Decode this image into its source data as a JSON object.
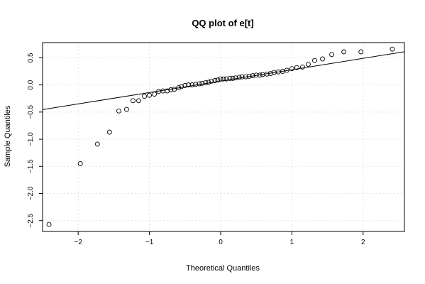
{
  "chart_data": {
    "type": "scatter",
    "title": "QQ plot of e[t]",
    "xlabel": "Theoretical Quantiles",
    "ylabel": "Sample Quantiles",
    "xlim": [
      -2.5,
      2.58
    ],
    "ylim": [
      -2.7,
      0.78
    ],
    "xticks": [
      -2,
      -1,
      0,
      1,
      2
    ],
    "yticks": [
      -2.5,
      -2.0,
      -1.5,
      -1.0,
      -0.5,
      0.0,
      0.5
    ],
    "xtick_labels": [
      "−2",
      "−1",
      "0",
      "1",
      "2"
    ],
    "ytick_labels": [
      "−2.5",
      "−2.0",
      "−1.5",
      "−1.0",
      "−0.5",
      "0.0",
      "0.5"
    ],
    "grid": true,
    "points": [
      [
        -2.41,
        -2.57
      ],
      [
        -1.97,
        -1.45
      ],
      [
        -1.73,
        -1.09
      ],
      [
        -1.56,
        -0.87
      ],
      [
        -1.43,
        -0.48
      ],
      [
        -1.32,
        -0.45
      ],
      [
        -1.23,
        -0.29
      ],
      [
        -1.15,
        -0.29
      ],
      [
        -1.07,
        -0.21
      ],
      [
        -1.0,
        -0.19
      ],
      [
        -0.93,
        -0.17
      ],
      [
        -0.87,
        -0.12
      ],
      [
        -0.81,
        -0.11
      ],
      [
        -0.75,
        -0.11
      ],
      [
        -0.7,
        -0.09
      ],
      [
        -0.65,
        -0.08
      ],
      [
        -0.59,
        -0.05
      ],
      [
        -0.55,
        -0.03
      ],
      [
        -0.5,
        -0.01
      ],
      [
        -0.45,
        0.0
      ],
      [
        -0.4,
        0.0
      ],
      [
        -0.35,
        0.01
      ],
      [
        -0.3,
        0.02
      ],
      [
        -0.26,
        0.03
      ],
      [
        -0.21,
        0.04
      ],
      [
        -0.17,
        0.05
      ],
      [
        -0.13,
        0.07
      ],
      [
        -0.08,
        0.08
      ],
      [
        -0.04,
        0.09
      ],
      [
        0.0,
        0.11
      ],
      [
        0.04,
        0.11
      ],
      [
        0.08,
        0.11
      ],
      [
        0.13,
        0.12
      ],
      [
        0.17,
        0.12
      ],
      [
        0.21,
        0.13
      ],
      [
        0.26,
        0.14
      ],
      [
        0.3,
        0.15
      ],
      [
        0.35,
        0.15
      ],
      [
        0.4,
        0.16
      ],
      [
        0.45,
        0.17
      ],
      [
        0.5,
        0.18
      ],
      [
        0.55,
        0.18
      ],
      [
        0.59,
        0.19
      ],
      [
        0.65,
        0.2
      ],
      [
        0.7,
        0.21
      ],
      [
        0.75,
        0.23
      ],
      [
        0.81,
        0.24
      ],
      [
        0.87,
        0.25
      ],
      [
        0.93,
        0.27
      ],
      [
        1.0,
        0.3
      ],
      [
        1.07,
        0.32
      ],
      [
        1.15,
        0.33
      ],
      [
        1.23,
        0.38
      ],
      [
        1.32,
        0.45
      ],
      [
        1.43,
        0.48
      ],
      [
        1.56,
        0.56
      ],
      [
        1.73,
        0.61
      ],
      [
        1.97,
        0.61
      ],
      [
        2.41,
        0.66
      ]
    ],
    "reference_line": {
      "intercept": 0.07,
      "slope": 0.21
    }
  }
}
